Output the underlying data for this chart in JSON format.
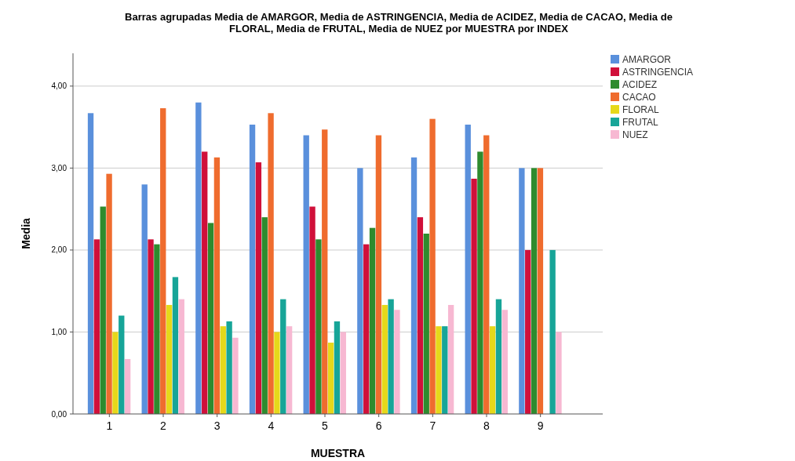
{
  "chart_data": {
    "type": "bar",
    "title": "Barras agrupadas Media de AMARGOR, Media de ASTRINGENCIA, Media de ACIDEZ, Media de CACAO, Media de FLORAL, Media de FRUTAL, Media de NUEZ por MUESTRA por INDEX",
    "xlabel": "MUESTRA",
    "ylabel": "Media",
    "categories": [
      "1",
      "2",
      "3",
      "4",
      "5",
      "6",
      "7",
      "8",
      "9"
    ],
    "series": [
      {
        "name": "AMARGOR",
        "color": "#5a90dc",
        "values": [
          3.67,
          2.8,
          3.8,
          3.53,
          3.4,
          3.0,
          3.13,
          3.53,
          3.0
        ]
      },
      {
        "name": "ASTRINGENCIA",
        "color": "#d0103a",
        "values": [
          2.13,
          2.13,
          3.2,
          3.07,
          2.53,
          2.07,
          2.4,
          2.87,
          2.0
        ]
      },
      {
        "name": "ACIDEZ",
        "color": "#2e8b2e",
        "values": [
          2.53,
          2.07,
          2.33,
          2.4,
          2.13,
          2.27,
          2.2,
          3.2,
          3.0
        ]
      },
      {
        "name": "CACAO",
        "color": "#ef6c2e",
        "values": [
          2.93,
          3.73,
          3.13,
          3.67,
          3.47,
          3.4,
          3.6,
          3.4,
          3.0
        ]
      },
      {
        "name": "FLORAL",
        "color": "#e6d81a",
        "values": [
          1.0,
          1.33,
          1.07,
          1.0,
          0.87,
          1.33,
          1.07,
          1.07,
          null
        ]
      },
      {
        "name": "FRUTAL",
        "color": "#17a598",
        "values": [
          1.2,
          1.67,
          1.13,
          1.4,
          1.13,
          1.4,
          1.07,
          1.4,
          2.0
        ]
      },
      {
        "name": "NUEZ",
        "color": "#f7b8d2",
        "values": [
          0.67,
          1.4,
          0.93,
          1.07,
          1.0,
          1.27,
          1.33,
          1.27,
          1.0
        ]
      }
    ],
    "ylim": [
      0,
      4.4
    ],
    "yticks": [
      {
        "value": 0,
        "label": "0,00"
      },
      {
        "value": 1,
        "label": "1,00"
      },
      {
        "value": 2,
        "label": "2,00"
      },
      {
        "value": 3,
        "label": "3,00"
      },
      {
        "value": 4,
        "label": "4,00"
      }
    ],
    "grid": "y",
    "legend": "top right"
  }
}
